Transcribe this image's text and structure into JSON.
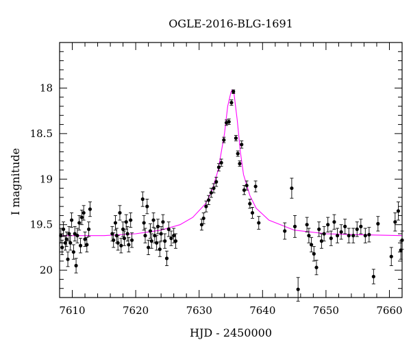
{
  "chart_data": {
    "type": "scatter",
    "title": "OGLE-2016-BLG-1691",
    "xlabel": "HJD - 2450000",
    "ylabel": "I magnitude",
    "xlim": [
      7608,
      7662
    ],
    "ylim": [
      20.3,
      17.5
    ],
    "y_inverted": true,
    "x_ticks": [
      7610,
      7620,
      7630,
      7640,
      7650,
      7660
    ],
    "y_ticks": [
      18,
      18.5,
      19,
      19.5,
      20
    ],
    "y_tick_labels": [
      "18",
      "18.5",
      "19",
      "19.5",
      "20"
    ],
    "grid": false,
    "colors": {
      "points": "#000000",
      "model": "#ff00ff"
    },
    "model": {
      "x": [
        7608,
        7615,
        7620,
        7624,
        7627,
        7629,
        7631,
        7632,
        7633,
        7634,
        7634.5,
        7635,
        7635.2,
        7635.5,
        7636,
        7636.5,
        7637,
        7638,
        7639,
        7641,
        7645,
        7650,
        7655,
        7662
      ],
      "y": [
        19.62,
        19.62,
        19.6,
        19.56,
        19.5,
        19.42,
        19.27,
        19.13,
        18.9,
        18.5,
        18.2,
        18.05,
        18.02,
        18.06,
        18.35,
        18.7,
        18.95,
        19.18,
        19.32,
        19.45,
        19.56,
        19.6,
        19.61,
        19.62
      ]
    },
    "series": [
      {
        "x": [
          7608.2,
          7608.4,
          7608.6,
          7608.9,
          7609.1,
          7609.3,
          7609.5,
          7609.7,
          7609.9,
          7610.2,
          7610.4,
          7610.6,
          7610.8,
          7611.1,
          7611.3,
          7611.5,
          7611.8,
          7612.0,
          7612.3,
          7612.6,
          7612.8,
          7616.3,
          7616.5,
          7616.8,
          7617.0,
          7617.2,
          7617.5,
          7617.7,
          7618.0,
          7618.2,
          7618.5,
          7618.7,
          7618.9,
          7619.2,
          7619.4,
          7621.1,
          7621.3,
          7621.5,
          7621.8,
          7622.0,
          7622.3,
          7622.5,
          7622.8,
          7623.0,
          7623.3,
          7623.5,
          7623.8,
          7624.0,
          7624.3,
          7624.6,
          7624.9,
          7625.2,
          7625.6,
          7626.0,
          7626.3,
          7630.4,
          7630.7,
          7631.1,
          7631.5,
          7631.9,
          7632.3,
          7632.7,
          7633.1,
          7633.5,
          7633.9,
          7634.3,
          7634.7,
          7635.1,
          7635.4,
          7635.8,
          7636.1,
          7636.4,
          7636.7,
          7637.1,
          7637.5,
          7638.0,
          7638.4,
          7638.9,
          7639.4,
          7643.5,
          7644.6,
          7645.1,
          7645.6,
          7647.0,
          7647.3,
          7647.7,
          7648.1,
          7648.5,
          7648.9,
          7649.3,
          7649.7,
          7650.3,
          7650.8,
          7651.3,
          7651.8,
          7652.4,
          7653.0,
          7653.6,
          7654.3,
          7654.9,
          7655.5,
          7656.2,
          7656.8,
          7657.5,
          7658.2,
          7660.3,
          7660.9,
          7661.4,
          7661.8,
          7662.0
        ],
        "y": [
          19.62,
          19.75,
          19.55,
          19.7,
          19.66,
          19.88,
          19.6,
          19.7,
          19.45,
          19.8,
          19.6,
          19.95,
          19.62,
          19.48,
          19.73,
          19.42,
          19.37,
          19.66,
          19.72,
          19.55,
          19.33,
          19.6,
          19.67,
          19.48,
          19.62,
          19.7,
          19.37,
          19.73,
          19.55,
          19.65,
          19.47,
          19.6,
          19.72,
          19.45,
          19.67,
          19.22,
          19.48,
          19.62,
          19.3,
          19.75,
          19.57,
          19.68,
          19.45,
          19.62,
          19.7,
          19.52,
          19.77,
          19.6,
          19.47,
          19.68,
          19.87,
          19.55,
          19.65,
          19.62,
          19.68,
          19.5,
          19.43,
          19.3,
          19.23,
          19.15,
          19.1,
          19.03,
          18.87,
          18.82,
          18.57,
          18.38,
          18.37,
          18.16,
          18.04,
          18.55,
          18.72,
          18.83,
          18.62,
          19.12,
          19.07,
          19.27,
          19.37,
          19.08,
          19.48,
          19.57,
          19.1,
          19.52,
          20.21,
          19.5,
          19.62,
          19.72,
          19.82,
          19.97,
          19.55,
          19.68,
          19.6,
          19.5,
          19.65,
          19.47,
          19.62,
          19.58,
          19.52,
          19.62,
          19.62,
          19.55,
          19.52,
          19.62,
          19.61,
          20.07,
          19.49,
          19.85,
          19.47,
          19.35,
          19.78,
          19.67
        ],
        "yerr": [
          0.08,
          0.08,
          0.08,
          0.08,
          0.08,
          0.08,
          0.08,
          0.08,
          0.08,
          0.08,
          0.08,
          0.08,
          0.08,
          0.08,
          0.08,
          0.08,
          0.08,
          0.08,
          0.08,
          0.08,
          0.08,
          0.08,
          0.08,
          0.08,
          0.08,
          0.08,
          0.08,
          0.08,
          0.08,
          0.08,
          0.08,
          0.08,
          0.08,
          0.08,
          0.08,
          0.08,
          0.08,
          0.08,
          0.08,
          0.08,
          0.08,
          0.08,
          0.08,
          0.08,
          0.08,
          0.08,
          0.08,
          0.08,
          0.08,
          0.08,
          0.08,
          0.08,
          0.08,
          0.08,
          0.08,
          0.06,
          0.06,
          0.06,
          0.05,
          0.05,
          0.05,
          0.05,
          0.04,
          0.04,
          0.03,
          0.03,
          0.03,
          0.03,
          0.02,
          0.03,
          0.03,
          0.03,
          0.04,
          0.05,
          0.05,
          0.05,
          0.06,
          0.06,
          0.07,
          0.09,
          0.11,
          0.12,
          0.13,
          0.08,
          0.08,
          0.08,
          0.08,
          0.08,
          0.08,
          0.08,
          0.08,
          0.08,
          0.08,
          0.08,
          0.08,
          0.08,
          0.08,
          0.08,
          0.08,
          0.08,
          0.08,
          0.08,
          0.08,
          0.08,
          0.08,
          0.1,
          0.1,
          0.1,
          0.1,
          0.1
        ]
      }
    ]
  }
}
